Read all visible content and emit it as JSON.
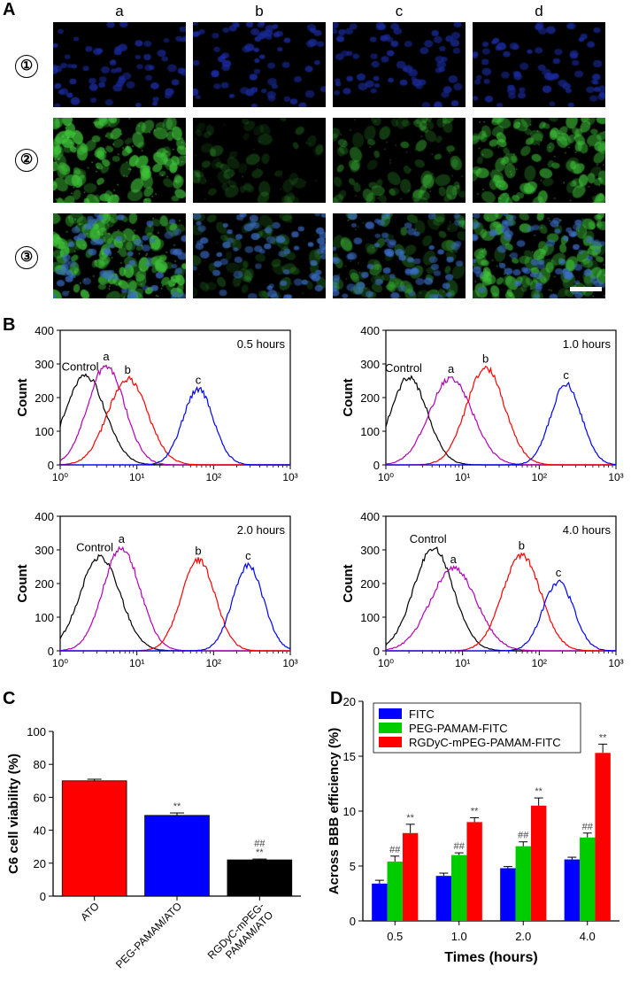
{
  "panel_a": {
    "letter": "A",
    "columns": [
      "a",
      "b",
      "c",
      "d"
    ],
    "rows": [
      "①",
      "②",
      "③"
    ],
    "colors": {
      "nucleus": "#1a2a9a",
      "fitc": "#3fc23a",
      "background": "#000000"
    }
  },
  "panel_b": {
    "letter": "B",
    "charts": [
      {
        "type": "histogram",
        "title": "0.5 hours",
        "ylabel": "Count",
        "ylim": [
          0,
          400
        ],
        "yticks": [
          "0",
          "100",
          "200",
          "300",
          "400"
        ],
        "xticks": [
          "10⁰",
          "10¹",
          "10²",
          "10³"
        ],
        "series": [
          {
            "name": "Control",
            "color": "#000000",
            "peak_log": 0.33,
            "height": 265,
            "width": 0.26
          },
          {
            "name": "a",
            "color": "#b300b3",
            "peak_log": 0.6,
            "height": 295,
            "width": 0.24
          },
          {
            "name": "b",
            "color": "#ff0000",
            "peak_log": 0.88,
            "height": 255,
            "width": 0.26
          },
          {
            "name": "c",
            "color": "#0000ff",
            "peak_log": 1.8,
            "height": 225,
            "width": 0.2
          }
        ]
      },
      {
        "type": "histogram",
        "title": "1.0 hours",
        "ylabel": "Count",
        "ylim": [
          0,
          400
        ],
        "yticks": [
          "0",
          "100",
          "200",
          "300",
          "400"
        ],
        "xticks": [
          "10⁰",
          "10¹",
          "10²",
          "10³"
        ],
        "series": [
          {
            "name": "Control",
            "color": "#000000",
            "peak_log": 0.3,
            "height": 260,
            "width": 0.24
          },
          {
            "name": "a",
            "color": "#b300b3",
            "peak_log": 0.85,
            "height": 258,
            "width": 0.28
          },
          {
            "name": "b",
            "color": "#ff0000",
            "peak_log": 1.3,
            "height": 288,
            "width": 0.25
          },
          {
            "name": "c",
            "color": "#0000ff",
            "peak_log": 2.35,
            "height": 240,
            "width": 0.2
          }
        ]
      },
      {
        "type": "histogram",
        "title": "2.0 hours",
        "ylabel": "Count",
        "ylim": [
          0,
          400
        ],
        "yticks": [
          "0",
          "100",
          "200",
          "300",
          "400"
        ],
        "xticks": [
          "10⁰",
          "10¹",
          "10²",
          "10³"
        ],
        "series": [
          {
            "name": "Control",
            "color": "#000000",
            "peak_log": 0.52,
            "height": 280,
            "width": 0.26
          },
          {
            "name": "a",
            "color": "#b300b3",
            "peak_log": 0.8,
            "height": 305,
            "width": 0.24
          },
          {
            "name": "b",
            "color": "#ff0000",
            "peak_log": 1.8,
            "height": 270,
            "width": 0.22
          },
          {
            "name": "c",
            "color": "#0000ff",
            "peak_log": 2.45,
            "height": 255,
            "width": 0.2
          }
        ]
      },
      {
        "type": "histogram",
        "title": "4.0 hours",
        "ylabel": "Count",
        "ylim": [
          0,
          400
        ],
        "yticks": [
          "0",
          "100",
          "200",
          "300",
          "400"
        ],
        "xticks": [
          "10⁰",
          "10¹",
          "10²",
          "10³"
        ],
        "series": [
          {
            "name": "Control",
            "color": "#000000",
            "peak_log": 0.62,
            "height": 305,
            "width": 0.26
          },
          {
            "name": "a",
            "color": "#b300b3",
            "peak_log": 0.88,
            "height": 245,
            "width": 0.3
          },
          {
            "name": "b",
            "color": "#ff0000",
            "peak_log": 1.77,
            "height": 285,
            "width": 0.25
          },
          {
            "name": "c",
            "color": "#0000ff",
            "peak_log": 2.25,
            "height": 205,
            "width": 0.2
          }
        ]
      }
    ]
  },
  "chart_data": [
    {
      "type": "bar",
      "panel": "C",
      "title": "",
      "ylabel": "C6 cell viability (%)",
      "xlabel": "",
      "ylim": [
        0,
        100
      ],
      "yticks": [
        "0",
        "20",
        "40",
        "60",
        "80",
        "100"
      ],
      "categories": [
        "ATO",
        "PEG-PAMAM/ATO",
        "RGDyC-mPEG-PAMAM/ATO"
      ],
      "category_lines": [
        [
          "ATO"
        ],
        [
          "PEG-PAMAM/ATO"
        ],
        [
          "RGDyC-mPEG-",
          "PAMAM/ATO"
        ]
      ],
      "values": [
        70,
        49,
        22
      ],
      "errors": [
        1,
        1.5,
        0.5
      ],
      "colors": [
        "#ff0000",
        "#0000ff",
        "#000000"
      ],
      "annotations": [
        [],
        [
          "**"
        ],
        [
          "##",
          "**"
        ]
      ]
    },
    {
      "type": "bar",
      "panel": "D",
      "title": "",
      "ylabel": "Across BBB efficiency (%)",
      "xlabel": "Times (hours)",
      "ylim": [
        0,
        20
      ],
      "yticks": [
        "0",
        "5",
        "10",
        "15",
        "20"
      ],
      "categories": [
        "0.5",
        "1.0",
        "2.0",
        "4.0"
      ],
      "series": [
        {
          "name": "FITC",
          "color": "#0000ff",
          "values": [
            3.4,
            4.1,
            4.8,
            5.6
          ],
          "errors": [
            0.3,
            0.25,
            0.15,
            0.2
          ],
          "annotations": [
            "",
            "",
            "",
            ""
          ]
        },
        {
          "name": "PEG-PAMAM-FITC",
          "color": "#00cc00",
          "values": [
            5.4,
            6.0,
            6.8,
            7.6
          ],
          "errors": [
            0.5,
            0.2,
            0.4,
            0.4
          ],
          "annotations": [
            "##",
            "##",
            "##",
            "##"
          ]
        },
        {
          "name": "RGDyC-mPEG-PAMAM-FITC",
          "color": "#ff0000",
          "values": [
            8.0,
            9.0,
            10.5,
            15.3
          ],
          "errors": [
            0.8,
            0.4,
            0.7,
            0.8
          ],
          "annotations": [
            "**",
            "**",
            "**",
            "**"
          ]
        }
      ]
    }
  ]
}
